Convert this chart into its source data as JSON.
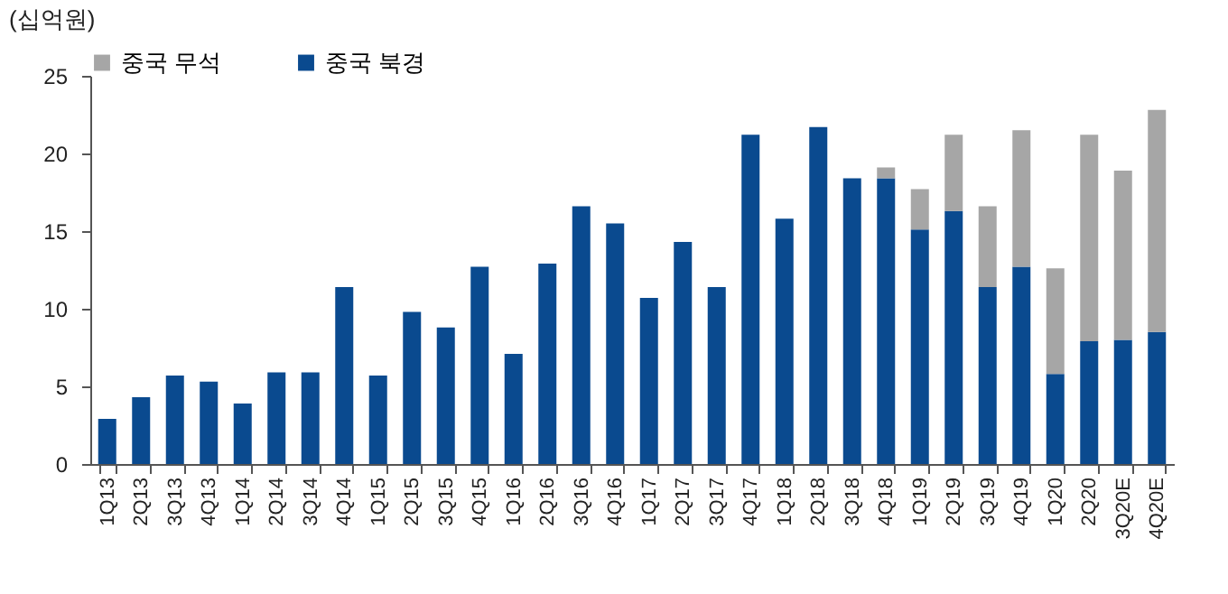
{
  "chart_data": {
    "type": "bar",
    "ylabel": "(십억원)",
    "stacked": true,
    "legend": "top",
    "grid": false,
    "categories": [
      "1Q13",
      "2Q13",
      "3Q13",
      "4Q13",
      "1Q14",
      "2Q14",
      "3Q14",
      "4Q14",
      "1Q15",
      "2Q15",
      "3Q15",
      "4Q15",
      "1Q16",
      "2Q16",
      "3Q16",
      "4Q16",
      "1Q17",
      "2Q17",
      "3Q17",
      "4Q17",
      "1Q18",
      "2Q18",
      "3Q18",
      "4Q18",
      "1Q19",
      "2Q19",
      "3Q19",
      "4Q19",
      "1Q20",
      "2Q20",
      "3Q20E",
      "4Q20E"
    ],
    "series": [
      {
        "name": "중국 북경",
        "color": "#0a4a8f",
        "values": [
          2.9,
          4.3,
          5.7,
          5.3,
          3.9,
          5.9,
          5.9,
          11.4,
          5.7,
          9.8,
          8.8,
          12.7,
          7.1,
          12.9,
          16.6,
          15.5,
          10.7,
          14.3,
          11.4,
          21.2,
          15.8,
          21.7,
          18.4,
          18.4,
          15.1,
          16.3,
          11.4,
          12.7,
          5.8,
          7.9,
          8.0,
          8.5
        ]
      },
      {
        "name": "중국 무석",
        "color": "#a6a6a6",
        "values": [
          null,
          null,
          null,
          null,
          null,
          null,
          null,
          null,
          null,
          null,
          null,
          null,
          null,
          null,
          null,
          null,
          null,
          null,
          null,
          null,
          null,
          null,
          null,
          0.7,
          2.6,
          4.9,
          5.2,
          8.8,
          6.8,
          13.3,
          10.9,
          14.3
        ]
      }
    ],
    "ylim": [
      0,
      25
    ],
    "yticks": [
      0,
      5,
      10,
      15,
      20,
      25
    ]
  }
}
